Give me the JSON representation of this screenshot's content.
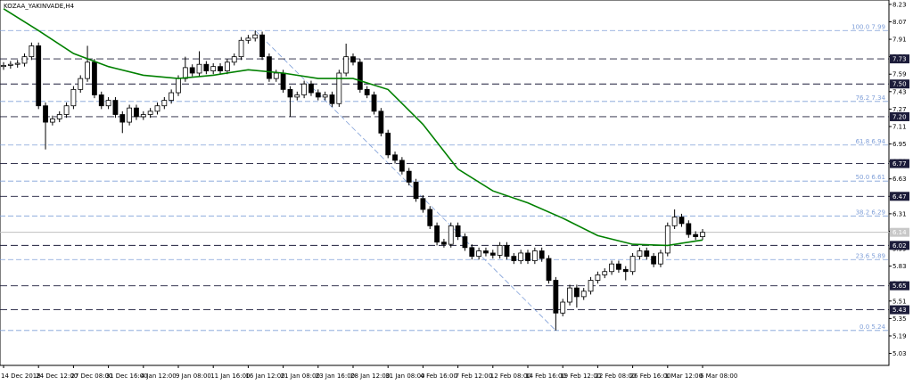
{
  "chart_data": {
    "type": "candlestick",
    "title": "KOZAA_YAKINVADE,H4",
    "categories": [
      "14 Dec 2018",
      null,
      null,
      null,
      null,
      "24 Dec 12:00",
      null,
      null,
      null,
      null,
      "27 Dec 08:00",
      null,
      null,
      null,
      null,
      "31 Dec 16:00",
      null,
      null,
      null,
      null,
      "4 Jan 12:00",
      null,
      null,
      null,
      null,
      "9 Jan 08:00",
      null,
      null,
      null,
      null,
      "11 Jan 16:00",
      null,
      null,
      null,
      null,
      "16 Jan 12:00",
      null,
      null,
      null,
      null,
      "21 Jan 08:00",
      null,
      null,
      null,
      null,
      "23 Jan 16:00",
      null,
      null,
      null,
      null,
      "28 Jan 12:00",
      null,
      null,
      null,
      null,
      "31 Jan 08:00",
      null,
      null,
      null,
      null,
      "4 Feb 16:00",
      null,
      null,
      null,
      null,
      "7 Feb 12:00",
      null,
      null,
      null,
      null,
      "12 Feb 08:00",
      null,
      null,
      null,
      null,
      "14 Feb 16:00",
      null,
      null,
      null,
      null,
      "19 Feb 12:00",
      null,
      null,
      null,
      null,
      "22 Feb 08:00",
      null,
      null,
      null,
      null,
      "26 Feb 16:00",
      null,
      null,
      null,
      null,
      "1 Mar 12:00",
      null,
      null,
      null,
      null,
      "6 Mar 08:00"
    ],
    "open": [
      7.66,
      7.67,
      7.68,
      7.69,
      7.75,
      7.85,
      7.3,
      7.15,
      7.18,
      7.22,
      7.3,
      7.45,
      7.55,
      7.7,
      7.4,
      7.3,
      7.35,
      7.22,
      7.15,
      7.28,
      7.2,
      7.22,
      7.25,
      7.3,
      7.35,
      7.42,
      7.55,
      7.65,
      7.6,
      7.68,
      7.62,
      7.66,
      7.62,
      7.7,
      7.75,
      7.9,
      7.92,
      7.95,
      7.75,
      7.55,
      7.6,
      7.45,
      7.38,
      7.4,
      7.5,
      7.42,
      7.38,
      7.4,
      7.32,
      7.6,
      7.75,
      7.7,
      7.45,
      7.4,
      7.25,
      7.05,
      6.85,
      6.8,
      6.7,
      6.6,
      6.45,
      6.35,
      6.2,
      6.05,
      6.03,
      6.2,
      6.1,
      6.0,
      5.92,
      5.97,
      5.95,
      5.93,
      6.02,
      5.92,
      5.88,
      5.95,
      5.88,
      5.97,
      5.9,
      5.7,
      5.4,
      5.5,
      5.63,
      5.55,
      5.6,
      5.7,
      5.75,
      5.78,
      5.85,
      5.8,
      5.78,
      5.92,
      5.97,
      5.92,
      5.85,
      5.95,
      6.2,
      6.28,
      6.22,
      6.12,
      6.1
    ],
    "high": [
      7.7,
      7.71,
      7.72,
      7.78,
      7.88,
      7.88,
      7.33,
      7.21,
      7.25,
      7.33,
      7.48,
      7.58,
      7.85,
      7.73,
      7.43,
      7.38,
      7.38,
      7.25,
      7.31,
      7.31,
      7.25,
      7.28,
      7.33,
      7.38,
      7.45,
      7.58,
      7.75,
      7.68,
      7.8,
      7.71,
      7.69,
      7.69,
      7.73,
      7.78,
      7.93,
      7.95,
      7.99,
      7.98,
      7.78,
      7.63,
      7.63,
      7.48,
      7.43,
      7.53,
      7.53,
      7.45,
      7.43,
      7.43,
      7.63,
      7.87,
      7.78,
      7.73,
      7.48,
      7.43,
      7.28,
      7.08,
      6.88,
      6.83,
      6.73,
      6.63,
      6.48,
      6.38,
      6.23,
      6.08,
      6.23,
      6.23,
      6.13,
      6.03,
      6.0,
      6.0,
      5.98,
      6.05,
      6.05,
      5.95,
      5.98,
      5.98,
      6.0,
      6.0,
      5.93,
      5.73,
      5.53,
      5.66,
      5.66,
      5.63,
      5.73,
      5.78,
      5.81,
      5.88,
      5.88,
      5.83,
      5.95,
      6.0,
      6.0,
      5.95,
      5.98,
      6.23,
      6.35,
      6.31,
      6.25,
      6.15,
      6.17
    ],
    "low": [
      7.63,
      7.64,
      7.65,
      7.66,
      7.72,
      7.27,
      6.9,
      7.12,
      7.15,
      7.19,
      7.27,
      7.42,
      7.52,
      7.37,
      7.27,
      7.27,
      7.19,
      7.05,
      7.12,
      7.17,
      7.17,
      7.19,
      7.22,
      7.27,
      7.32,
      7.39,
      7.52,
      7.57,
      7.57,
      7.59,
      7.59,
      7.59,
      7.59,
      7.67,
      7.72,
      7.87,
      7.89,
      7.72,
      7.52,
      7.52,
      7.42,
      7.2,
      7.35,
      7.37,
      7.39,
      7.35,
      7.35,
      7.29,
      7.29,
      7.57,
      7.67,
      7.42,
      7.37,
      7.22,
      7.02,
      6.82,
      6.77,
      6.67,
      6.57,
      6.42,
      6.32,
      6.17,
      6.02,
      6.0,
      6.0,
      6.07,
      5.97,
      5.89,
      5.89,
      5.92,
      5.9,
      5.9,
      5.89,
      5.85,
      5.85,
      5.85,
      5.85,
      5.87,
      5.67,
      5.24,
      5.37,
      5.47,
      5.45,
      5.52,
      5.57,
      5.67,
      5.72,
      5.75,
      5.77,
      5.7,
      5.75,
      5.89,
      5.89,
      5.82,
      5.82,
      5.92,
      6.17,
      6.19,
      6.09,
      6.07,
      6.07
    ],
    "close": [
      7.67,
      7.68,
      7.69,
      7.75,
      7.85,
      7.3,
      7.15,
      7.18,
      7.22,
      7.3,
      7.45,
      7.55,
      7.7,
      7.4,
      7.3,
      7.35,
      7.22,
      7.15,
      7.28,
      7.2,
      7.22,
      7.25,
      7.3,
      7.35,
      7.42,
      7.55,
      7.65,
      7.6,
      7.68,
      7.62,
      7.66,
      7.62,
      7.7,
      7.75,
      7.9,
      7.92,
      7.95,
      7.75,
      7.55,
      7.6,
      7.45,
      7.38,
      7.4,
      7.5,
      7.42,
      7.38,
      7.4,
      7.32,
      7.6,
      7.75,
      7.7,
      7.45,
      7.4,
      7.25,
      7.05,
      6.85,
      6.8,
      6.7,
      6.6,
      6.45,
      6.35,
      6.2,
      6.05,
      6.03,
      6.2,
      6.1,
      6.0,
      5.92,
      5.97,
      5.95,
      5.93,
      6.02,
      5.92,
      5.88,
      5.95,
      5.88,
      5.97,
      5.9,
      5.7,
      5.4,
      5.5,
      5.63,
      5.55,
      5.6,
      5.7,
      5.75,
      5.78,
      5.85,
      5.8,
      5.78,
      5.92,
      5.97,
      5.92,
      5.85,
      5.95,
      6.2,
      6.28,
      6.22,
      6.12,
      6.1,
      6.14
    ],
    "up_color": "#ffffff",
    "down_color": "#000000",
    "ma": {
      "color": "#008000",
      "x": [
        0,
        5,
        10,
        15,
        20,
        25,
        30,
        35,
        40,
        45,
        50,
        55,
        60,
        65,
        70,
        75,
        80,
        85,
        90,
        95,
        100
      ],
      "values": [
        8.19,
        7.99,
        7.78,
        7.66,
        7.58,
        7.55,
        7.58,
        7.63,
        7.6,
        7.55,
        7.55,
        7.45,
        7.13,
        6.72,
        6.52,
        6.41,
        6.27,
        6.11,
        6.03,
        6.02,
        6.07
      ]
    },
    "ylim": [
      4.92,
      8.27
    ],
    "yticks": [
      8.23,
      8.07,
      7.91,
      7.75,
      7.59,
      7.43,
      7.27,
      7.11,
      6.95,
      6.79,
      6.63,
      6.47,
      6.31,
      6.15,
      5.99,
      5.83,
      5.67,
      5.51,
      5.35,
      5.19,
      5.03
    ],
    "levels": [
      7.73,
      {
        "value": 7.5,
        "label": "7.50"
      },
      {
        "value": 7.2,
        "label": "7.20"
      },
      6.77,
      6.47,
      6.02,
      5.65,
      5.43
    ],
    "level_color": "#1c1c3a",
    "fibo": {
      "color": "#7f9fd8",
      "anchors": [
        36,
        79
      ],
      "levels": [
        {
          "value": 7.99,
          "label": "100.0 7.99"
        },
        {
          "value": 7.34,
          "label": "76.2 7.34"
        },
        {
          "value": 6.94,
          "label": "61.8 6.94"
        },
        {
          "value": 6.61,
          "label": "50.0 6.61"
        },
        {
          "value": 6.29,
          "label": "38.2 6.29"
        },
        {
          "value": 5.89,
          "label": "23.6 5.89"
        },
        {
          "value": 5.24,
          "label": "0.0 5.24"
        }
      ]
    },
    "last_price": 6.14
  }
}
